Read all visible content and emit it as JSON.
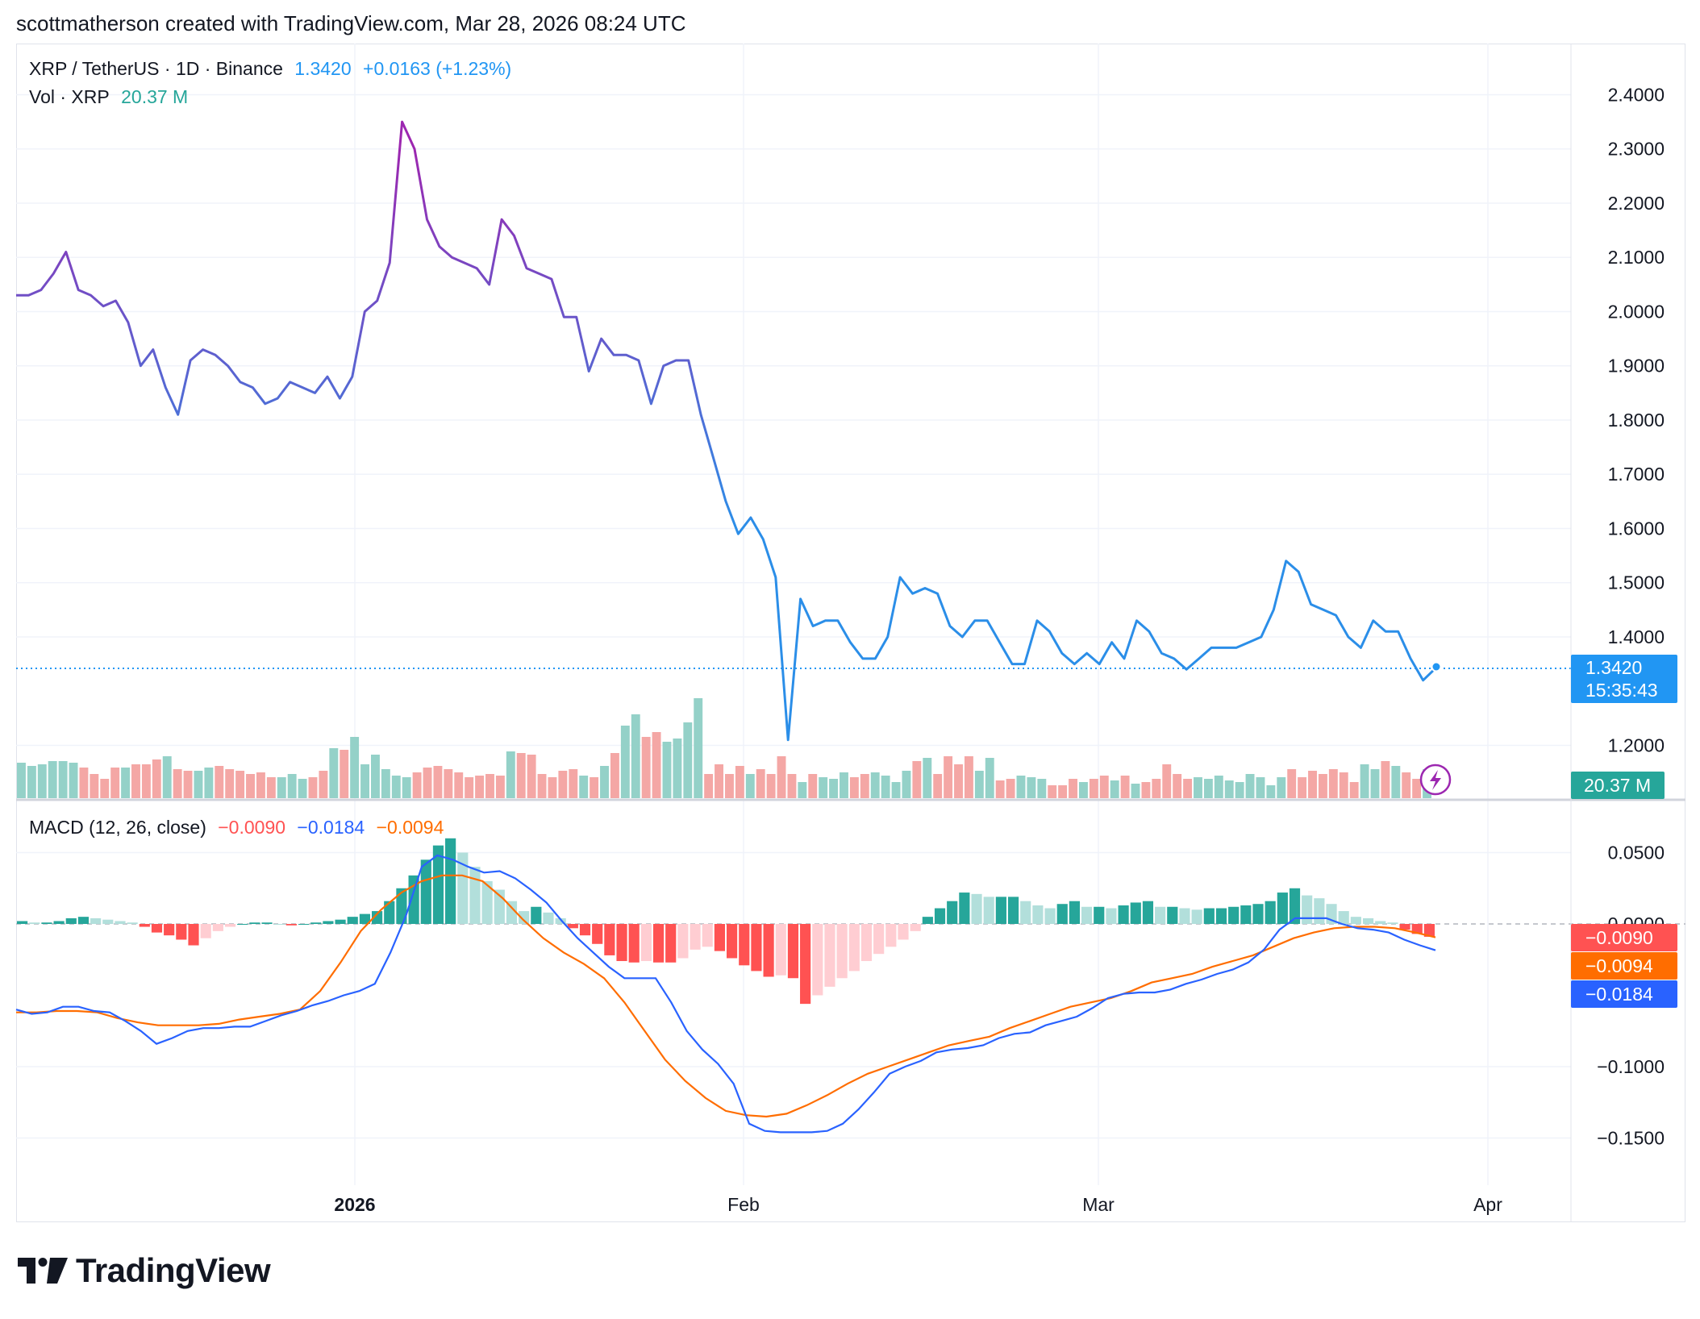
{
  "header": {
    "attribution": "scottmatherson created with TradingView.com, Mar 28, 2026 08:24 UTC"
  },
  "legend": {
    "symbol": "XRP / TetherUS · 1D · Binance",
    "price": "1.3420",
    "change": "+0.0163 (+1.23%)",
    "vol_label": "Vol · XRP",
    "vol_value": "20.37 M",
    "macd_label": "MACD (12, 26, close)",
    "macd_hist": "−0.0090",
    "macd_line": "−0.0184",
    "macd_signal": "−0.0094"
  },
  "tags": {
    "price": "1.3420",
    "countdown": "15:35:43",
    "volume": "20.37 M",
    "macd_hist": "−0.0090",
    "macd_signal": "−0.0094",
    "macd_line": "−0.0184"
  },
  "brand": {
    "name": "TradingView"
  },
  "colors": {
    "price_up_start": "#9c27b0",
    "price_line": "#2b8ee8",
    "vol_up": "#94d1c8",
    "vol_down": "#f4a7a5",
    "macd_line": "#2962ff",
    "signal_line": "#ff6d00",
    "hist_pos_strong": "#26a69a",
    "hist_pos_weak": "#b2dfdb",
    "hist_neg_strong": "#ff5252",
    "hist_neg_weak": "#ffcdd2"
  },
  "chart_data": [
    {
      "type": "line",
      "title": "XRP / TetherUS · 1D · Binance",
      "x_axis": {
        "ticks": [
          "2026",
          "Feb",
          "Mar",
          "Apr"
        ]
      },
      "y_axis": {
        "ticks": [
          "2.4000",
          "2.3000",
          "2.2000",
          "2.1000",
          "2.0000",
          "1.9000",
          "1.8000",
          "1.7000",
          "1.6000",
          "1.5000",
          "1.4000",
          "1.2000"
        ],
        "range": [
          1.1,
          2.5
        ]
      },
      "series": [
        {
          "values": [
            2.03,
            2.03,
            2.04,
            2.07,
            2.11,
            2.04,
            2.03,
            2.01,
            2.02,
            1.98,
            1.9,
            1.93,
            1.86,
            1.81,
            1.91,
            1.93,
            1.92,
            1.9,
            1.87,
            1.86,
            1.83,
            1.84,
            1.87,
            1.86,
            1.85,
            1.88,
            1.84,
            1.88,
            2.0,
            2.02,
            2.09,
            2.35,
            2.3,
            2.17,
            2.12,
            2.1,
            2.09,
            2.08,
            2.05,
            2.17,
            2.14,
            2.08,
            2.07,
            2.06,
            1.99,
            1.99,
            1.89,
            1.95,
            1.92,
            1.92,
            1.91,
            1.83,
            1.9,
            1.91,
            1.91,
            1.81,
            1.73,
            1.65,
            1.59,
            1.62,
            1.58,
            1.51,
            1.21,
            1.47,
            1.42,
            1.43,
            1.43,
            1.39,
            1.36,
            1.36,
            1.4,
            1.51,
            1.48,
            1.49,
            1.48,
            1.42,
            1.4,
            1.43,
            1.43,
            1.39,
            1.35,
            1.35,
            1.43,
            1.41,
            1.37,
            1.35,
            1.37,
            1.35,
            1.39,
            1.36,
            1.43,
            1.41,
            1.37,
            1.36,
            1.34,
            1.36,
            1.38,
            1.38,
            1.38,
            1.39,
            1.4,
            1.45,
            1.54,
            1.52,
            1.46,
            1.45,
            1.44,
            1.4,
            1.38,
            1.43,
            1.41,
            1.41,
            1.36,
            1.32,
            1.342
          ]
        }
      ]
    },
    {
      "type": "bar",
      "title": "Vol · XRP",
      "series": [
        {
          "name": "Volume",
          "values": [
            22,
            20,
            21,
            23,
            23,
            22,
            19,
            15,
            12,
            19,
            19,
            21,
            21,
            24,
            26,
            18,
            17,
            17,
            19,
            20,
            18,
            17,
            15,
            16,
            13,
            13,
            15,
            12,
            13,
            17,
            31,
            30,
            38,
            21,
            27,
            18,
            14,
            13,
            16,
            19,
            20,
            18,
            16,
            13,
            14,
            15,
            14,
            29,
            28,
            27,
            15,
            13,
            17,
            18,
            14,
            13,
            20,
            28,
            45,
            52,
            38,
            41,
            35,
            37,
            47,
            62,
            15,
            21,
            15,
            20,
            15,
            18,
            15,
            26,
            15,
            10,
            15,
            13,
            12,
            16,
            13,
            15,
            16,
            14,
            10,
            17,
            23,
            25,
            15,
            26,
            21,
            26,
            17,
            25,
            11,
            12,
            14,
            13,
            12,
            8,
            8,
            12,
            10,
            12,
            14,
            11,
            14,
            9,
            10,
            12,
            21,
            15,
            12,
            13,
            12,
            14,
            11,
            10,
            15,
            13,
            8,
            13,
            18,
            13,
            17,
            15,
            18,
            16,
            10,
            21,
            18,
            23,
            20,
            16,
            12,
            18
          ]
        }
      ]
    },
    {
      "type": "bar",
      "title": "MACD (12, 26, close)",
      "y_axis": {
        "ticks": [
          "0.0500",
          "0.0000",
          "−0.1000",
          "−0.1500"
        ],
        "range": [
          -0.17,
          0.07
        ]
      },
      "series": [
        {
          "name": "Histogram",
          "values": [
            0.002,
            0.001,
            0.001,
            0.002,
            0.004,
            0.005,
            0.004,
            0.003,
            0.002,
            0.001,
            -0.002,
            -0.006,
            -0.008,
            -0.011,
            -0.015,
            -0.01,
            -0.005,
            -0.002,
            0.0,
            0.001,
            0.001,
            0.0,
            -0.001,
            0.0,
            0.001,
            0.002,
            0.003,
            0.005,
            0.007,
            0.009,
            0.016,
            0.025,
            0.034,
            0.045,
            0.055,
            0.06,
            0.05,
            0.04,
            0.03,
            0.024,
            0.016,
            0.009,
            0.012,
            0.008,
            0.004,
            -0.003,
            -0.008,
            -0.014,
            -0.022,
            -0.026,
            -0.027,
            -0.026,
            -0.027,
            -0.027,
            -0.024,
            -0.018,
            -0.016,
            -0.019,
            -0.024,
            -0.029,
            -0.033,
            -0.037,
            -0.036,
            -0.038,
            -0.056,
            -0.05,
            -0.044,
            -0.038,
            -0.033,
            -0.026,
            -0.021,
            -0.016,
            -0.011,
            -0.005,
            0.005,
            0.011,
            0.016,
            0.022,
            0.021,
            0.019,
            0.019,
            0.019,
            0.016,
            0.013,
            0.011,
            0.014,
            0.016,
            0.012,
            0.012,
            0.011,
            0.013,
            0.015,
            0.016,
            0.012,
            0.012,
            0.011,
            0.01,
            0.011,
            0.011,
            0.012,
            0.013,
            0.014,
            0.016,
            0.022,
            0.025,
            0.02,
            0.018,
            0.014,
            0.009,
            0.005,
            0.004,
            0.002,
            0.001,
            -0.004,
            -0.007,
            -0.009
          ]
        },
        {
          "name": "MACD",
          "values": [
            -0.06,
            -0.063,
            -0.062,
            -0.058,
            -0.058,
            -0.061,
            -0.062,
            -0.068,
            -0.075,
            -0.084,
            -0.08,
            -0.075,
            -0.073,
            -0.073,
            -0.072,
            -0.072,
            -0.068,
            -0.064,
            -0.061,
            -0.057,
            -0.054,
            -0.05,
            -0.047,
            -0.042,
            -0.02,
            0.006,
            0.04,
            0.048,
            0.045,
            0.04,
            0.036,
            0.037,
            0.032,
            0.024,
            0.015,
            0.002,
            -0.01,
            -0.02,
            -0.03,
            -0.038,
            -0.038,
            -0.038,
            -0.055,
            -0.075,
            -0.088,
            -0.098,
            -0.112,
            -0.14,
            -0.145,
            -0.146,
            -0.146,
            -0.146,
            -0.145,
            -0.14,
            -0.13,
            -0.118,
            -0.105,
            -0.1,
            -0.096,
            -0.09,
            -0.088,
            -0.087,
            -0.085,
            -0.08,
            -0.077,
            -0.076,
            -0.071,
            -0.068,
            -0.065,
            -0.059,
            -0.052,
            -0.049,
            -0.048,
            -0.048,
            -0.046,
            -0.042,
            -0.039,
            -0.035,
            -0.032,
            -0.027,
            -0.018,
            -0.004,
            0.004,
            0.004,
            0.004,
            0.0,
            -0.003,
            -0.004,
            -0.006,
            -0.011,
            -0.015,
            -0.0184
          ]
        },
        {
          "name": "Signal",
          "values": [
            -0.062,
            -0.062,
            -0.061,
            -0.061,
            -0.062,
            -0.066,
            -0.069,
            -0.071,
            -0.071,
            -0.071,
            -0.07,
            -0.067,
            -0.065,
            -0.063,
            -0.06,
            -0.047,
            -0.027,
            -0.005,
            0.01,
            0.022,
            0.03,
            0.034,
            0.034,
            0.03,
            0.018,
            0.003,
            -0.01,
            -0.02,
            -0.028,
            -0.038,
            -0.055,
            -0.075,
            -0.095,
            -0.11,
            -0.122,
            -0.131,
            -0.134,
            -0.135,
            -0.133,
            -0.127,
            -0.12,
            -0.112,
            -0.105,
            -0.1,
            -0.095,
            -0.09,
            -0.085,
            -0.082,
            -0.079,
            -0.073,
            -0.068,
            -0.063,
            -0.058,
            -0.055,
            -0.052,
            -0.047,
            -0.041,
            -0.038,
            -0.035,
            -0.03,
            -0.026,
            -0.022,
            -0.016,
            -0.01,
            -0.006,
            -0.003,
            -0.002,
            -0.002,
            -0.003,
            -0.006,
            -0.0094
          ]
        }
      ]
    }
  ]
}
